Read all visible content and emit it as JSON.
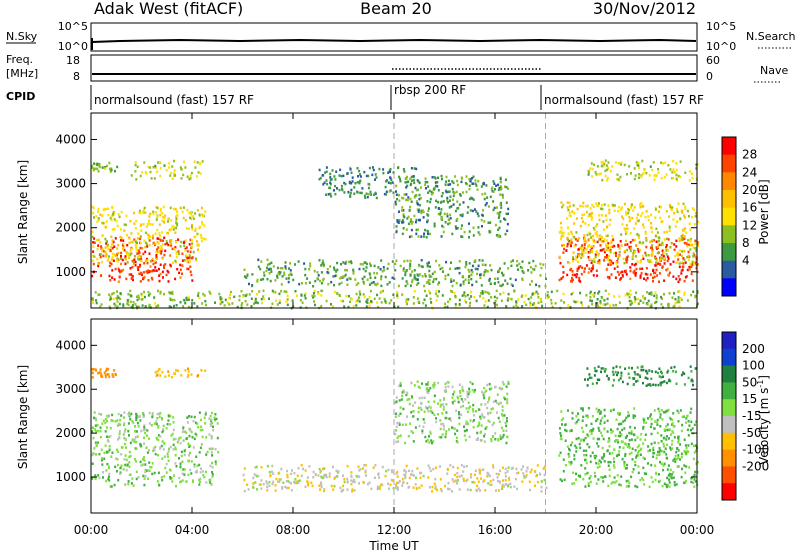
{
  "header": {
    "title": "Adak West (fitACF)",
    "beam": "Beam 20",
    "date": "30/Nov/2012"
  },
  "top_panels": {
    "nsky_label": "N.Sky",
    "nsky_ticks": [
      "10^5",
      "10^0"
    ],
    "nsearch_label": "N.Search",
    "nsearch_ticks": [
      "10^5",
      "10^0"
    ],
    "freq_label_line1": "Freq.",
    "freq_label_line2": "[MHz]",
    "freq_ticks": [
      "18",
      "8"
    ],
    "nave_label": "Nave",
    "nave_ticks": [
      "60",
      "0"
    ],
    "cpid_label": "CPID",
    "cpid_segments": [
      {
        "name": "normalsound (fast) 157 RF",
        "start_ut": 0,
        "end_ut": 12
      },
      {
        "name": "rbsp 200 RF",
        "start_ut": 12,
        "end_ut": 18
      },
      {
        "name": "normalsound (fast) 157 RF",
        "start_ut": 18,
        "end_ut": 24
      }
    ]
  },
  "x_axis": {
    "label": "Time UT",
    "ticks": [
      "00:00",
      "04:00",
      "08:00",
      "12:00",
      "16:00",
      "20:00",
      "00:00"
    ]
  },
  "power_colorbar": {
    "label": "Power [dB]",
    "ticks": [
      "28",
      "24",
      "20",
      "16",
      "12",
      "8",
      "4"
    ],
    "colors": [
      "#ff0000",
      "#ff4400",
      "#ff8800",
      "#ffc000",
      "#ffe000",
      "#8cc020",
      "#3c9a40",
      "#2a5aa0",
      "#0000ff"
    ]
  },
  "velocity_colorbar": {
    "label": "Velocity [m s",
    "label_sup": "-1",
    "label_end": "]",
    "ticks": [
      "200",
      "100",
      "50",
      "15",
      "-15",
      "-50",
      "-100",
      "-200"
    ],
    "colors": [
      "#2020c0",
      "#1040d0",
      "#208040",
      "#40b040",
      "#80e040",
      "#c0c0c0",
      "#ffc000",
      "#ff9000",
      "#ff5000",
      "#ff0000"
    ]
  },
  "chart_data": [
    {
      "type": "heatmap",
      "title": "Power",
      "xlabel": "Time UT",
      "ylabel": "Slant Range [km]",
      "xlim": [
        0,
        24
      ],
      "ylim": [
        180,
        4600
      ],
      "yticks": [
        "4000",
        "3000",
        "2000",
        "1000"
      ],
      "ytick_values": [
        4000,
        3000,
        2000,
        1000
      ],
      "colorbar": "Power [dB]",
      "regions": [
        {
          "t": [
            0.0,
            4.0
          ],
          "r": [
            800,
            1800
          ],
          "level": 26
        },
        {
          "t": [
            0.0,
            4.5
          ],
          "r": [
            1200,
            2500
          ],
          "level": 14
        },
        {
          "t": [
            1.5,
            4.5
          ],
          "r": [
            3100,
            3550
          ],
          "level": 12
        },
        {
          "t": [
            0.0,
            1.0
          ],
          "r": [
            3300,
            3500
          ],
          "level": 10
        },
        {
          "t": [
            6.0,
            18.0
          ],
          "r": [
            700,
            1300
          ],
          "level": 8
        },
        {
          "t": [
            9.0,
            13.0
          ],
          "r": [
            2700,
            3400
          ],
          "level": 6
        },
        {
          "t": [
            12.0,
            16.5
          ],
          "r": [
            1800,
            3200
          ],
          "level": 7
        },
        {
          "t": [
            18.5,
            24.0
          ],
          "r": [
            800,
            1800
          ],
          "level": 26
        },
        {
          "t": [
            18.5,
            24.0
          ],
          "r": [
            1200,
            2600
          ],
          "level": 14
        },
        {
          "t": [
            19.5,
            24.0
          ],
          "r": [
            3100,
            3550
          ],
          "level": 12
        },
        {
          "t": [
            0.0,
            24.0
          ],
          "r": [
            200,
            600
          ],
          "level": 10
        }
      ]
    },
    {
      "type": "heatmap",
      "title": "Velocity",
      "xlabel": "Time UT",
      "ylabel": "Slant Range [km]",
      "xlim": [
        0,
        24
      ],
      "ylim": [
        180,
        4600
      ],
      "yticks": [
        "4000",
        "3000",
        "2000",
        "1000"
      ],
      "ytick_values": [
        4000,
        3000,
        2000,
        1000
      ],
      "colorbar": "Velocity [m s-1]",
      "regions": [
        {
          "t": [
            0.0,
            5.0
          ],
          "r": [
            800,
            2500
          ],
          "velocity": 0
        },
        {
          "t": [
            0.0,
            1.0
          ],
          "r": [
            3300,
            3500
          ],
          "velocity": -150
        },
        {
          "t": [
            2.5,
            4.5
          ],
          "r": [
            3300,
            3500
          ],
          "velocity": -80
        },
        {
          "t": [
            6.0,
            18.0
          ],
          "r": [
            700,
            1300
          ],
          "velocity": -40
        },
        {
          "t": [
            12.0,
            16.5
          ],
          "r": [
            1800,
            3200
          ],
          "velocity": 0
        },
        {
          "t": [
            18.5,
            24.0
          ],
          "r": [
            800,
            2600
          ],
          "velocity": 20
        },
        {
          "t": [
            19.5,
            24.0
          ],
          "r": [
            3100,
            3550
          ],
          "velocity": 60
        }
      ]
    }
  ]
}
